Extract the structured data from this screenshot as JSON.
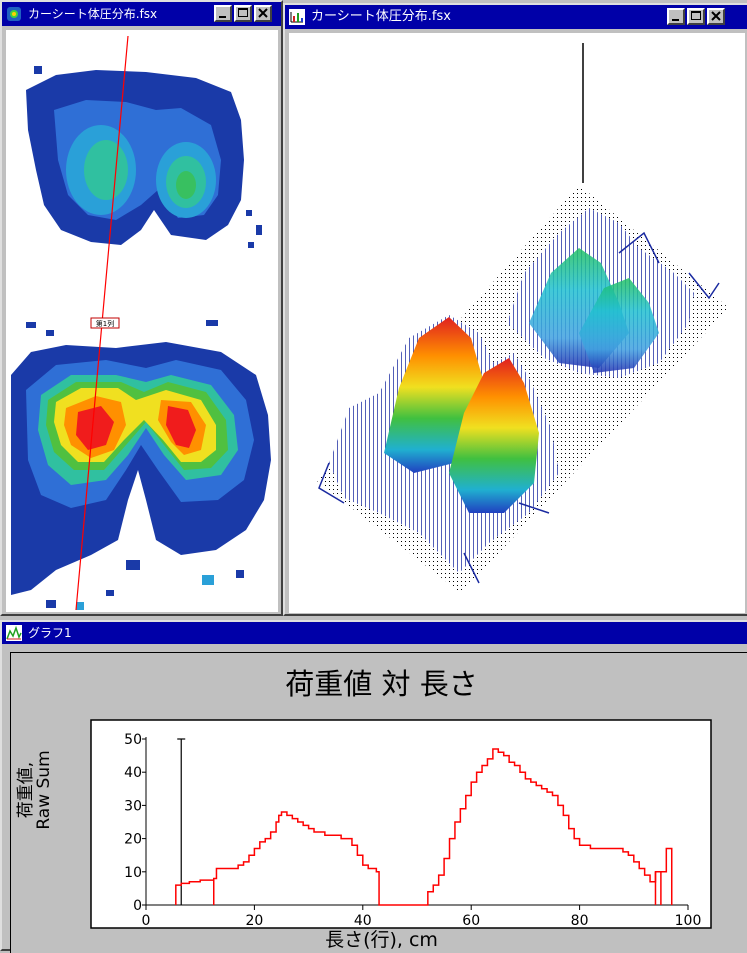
{
  "windows": {
    "heatmap_title": "カーシート体圧分布.fsx",
    "surface_title": "カーシート体圧分布.fsx",
    "graph_title": "グラフ1"
  },
  "marker_label": "第1列",
  "chart_data": {
    "type": "line",
    "title": "荷重値 対 長さ",
    "xlabel": "長さ(行), cm",
    "ylabel_line1": "荷重値,",
    "ylabel_line2": "Raw Sum",
    "xlim": [
      0,
      100
    ],
    "ylim": [
      0,
      50
    ],
    "xticks": [
      0,
      20,
      40,
      60,
      80,
      100
    ],
    "yticks": [
      0,
      10,
      20,
      30,
      40,
      50
    ],
    "cursor_x": 6.5,
    "series": [
      {
        "color": "#ff0000",
        "x": [
          5.5,
          6.5,
          8,
          10,
          12.5,
          13,
          15,
          17,
          18,
          19,
          20,
          21,
          22,
          23,
          24,
          24.5,
          25,
          26,
          27,
          28,
          29,
          30,
          31,
          33,
          35,
          36,
          37,
          38,
          39,
          40,
          41,
          42,
          42.5,
          43,
          51,
          52,
          53,
          54,
          55,
          56,
          57,
          58,
          59,
          60,
          61,
          62,
          63,
          64,
          65,
          66,
          67,
          68,
          69,
          70,
          71,
          72,
          73,
          74,
          75,
          76,
          77,
          78,
          79,
          80,
          82,
          84,
          86,
          88,
          89,
          90,
          91,
          92,
          93,
          94,
          95,
          96,
          96.5,
          97
        ],
        "y": [
          6,
          6.5,
          7,
          7.5,
          8,
          11,
          11,
          12,
          13,
          15,
          17,
          19,
          20,
          22,
          25,
          27,
          28,
          27,
          26,
          25,
          24,
          23,
          22,
          21,
          21,
          20,
          20,
          18,
          15,
          12,
          11,
          11,
          10,
          0,
          0,
          4,
          6,
          9,
          14,
          20,
          25,
          29,
          33,
          37,
          40,
          42,
          44,
          47,
          46,
          45,
          43,
          42,
          40,
          38,
          37,
          36,
          35,
          34,
          33,
          30,
          27,
          23,
          20,
          18,
          17,
          17,
          17,
          16,
          15,
          13,
          11,
          9,
          7,
          10,
          10,
          17,
          17,
          0
        ]
      }
    ]
  }
}
